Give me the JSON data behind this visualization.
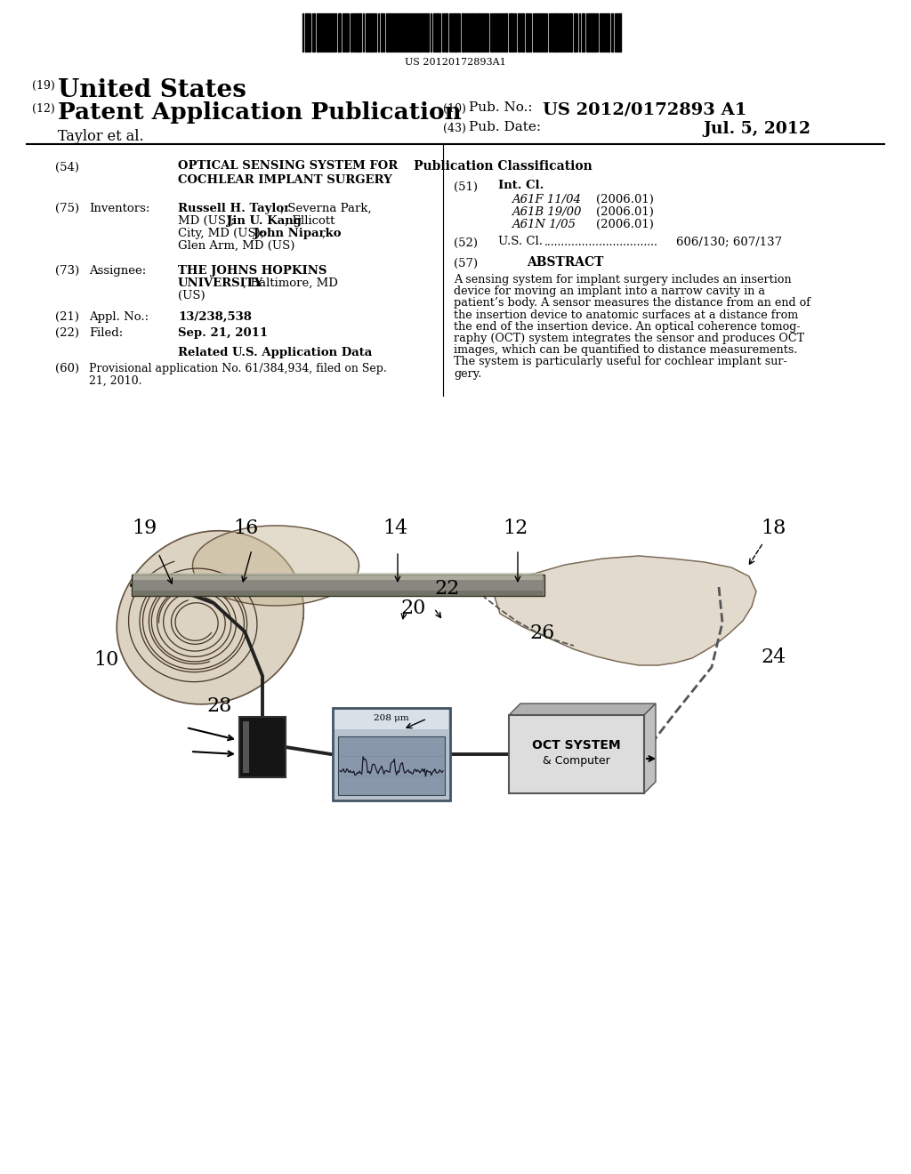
{
  "background_color": "#ffffff",
  "barcode_text": "US 20120172893A1",
  "patent_number": "US 2012/0172893 A1",
  "pub_date": "Jul. 5, 2012"
}
